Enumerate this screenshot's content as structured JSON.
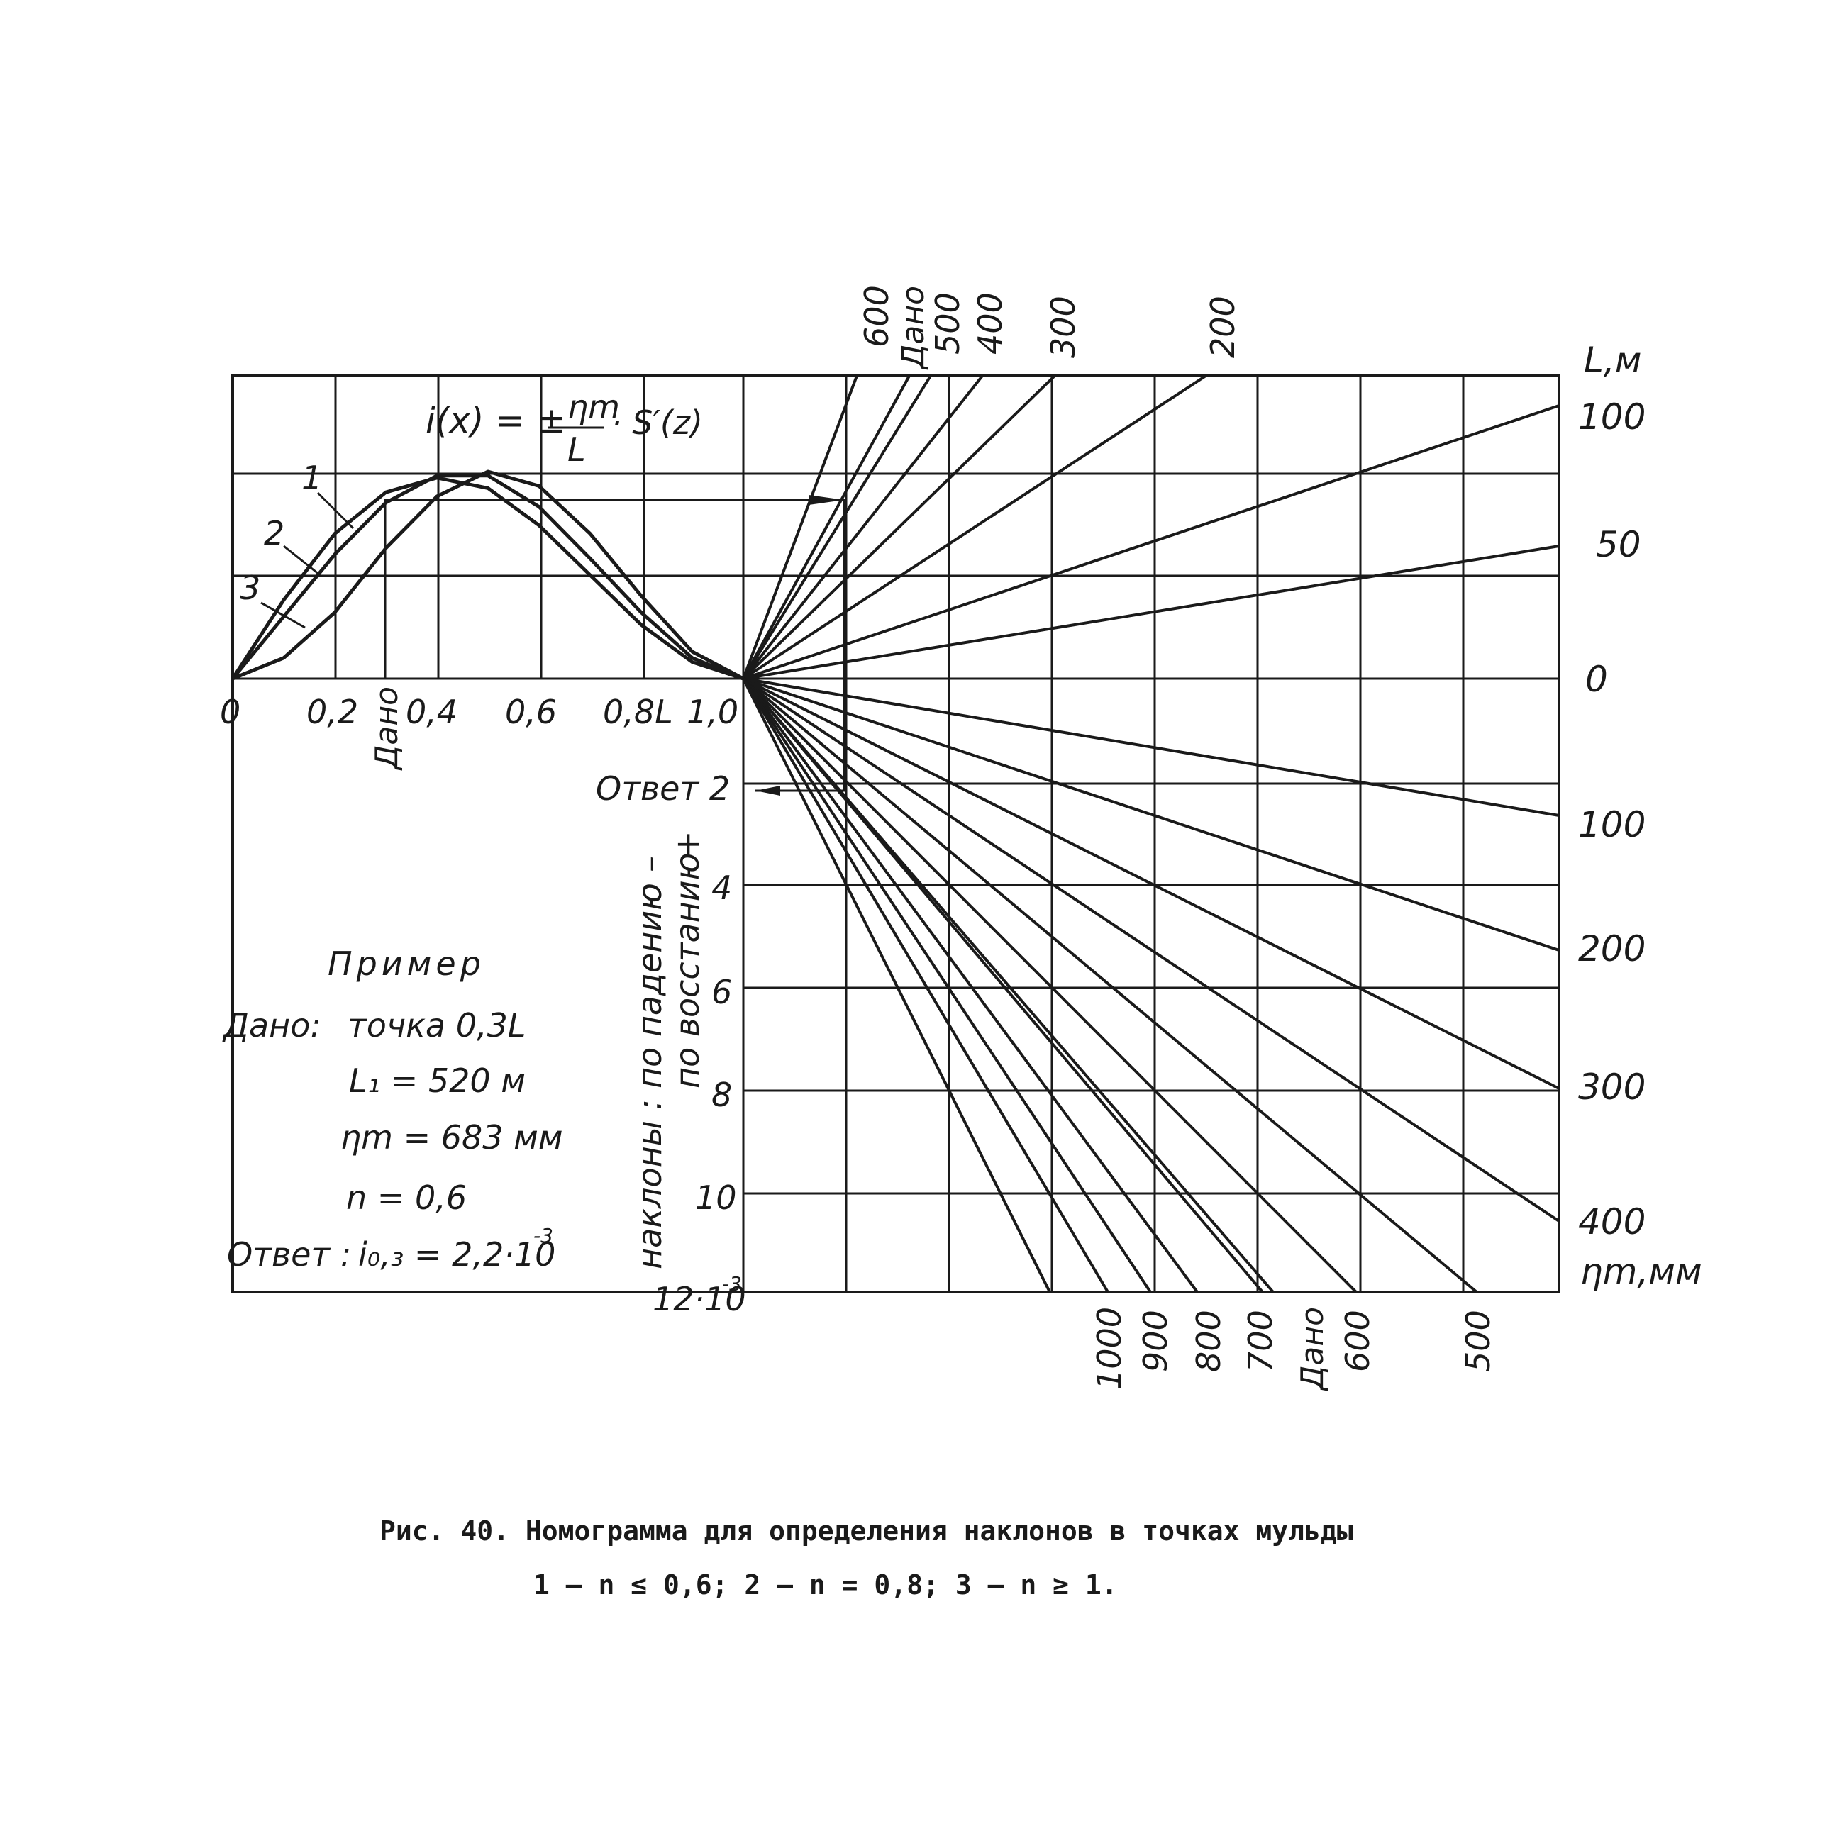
{
  "chart_data": {
    "type": "nomogram",
    "formula": {
      "lhs": "i(x) = ±",
      "numerator": "ηm",
      "denominator": "L",
      "rhs": "· S′(z)"
    },
    "profile_panel": {
      "x_ticks": [
        "0",
        "0,2",
        "Дано",
        "0,4",
        "0,6",
        "0,8L",
        "1,0"
      ],
      "x_given": 0.3,
      "series": [
        {
          "name": "1",
          "x": [
            0,
            0.1,
            0.2,
            0.3,
            0.4,
            0.5,
            0.6,
            0.7,
            0.8,
            0.9,
            1.0
          ],
          "y": [
            0,
            0.38,
            0.7,
            0.9,
            0.97,
            0.92,
            0.74,
            0.5,
            0.26,
            0.08,
            0
          ]
        },
        {
          "name": "2",
          "x": [
            0,
            0.1,
            0.2,
            0.3,
            0.4,
            0.5,
            0.6,
            0.7,
            0.8,
            0.9,
            1.0
          ],
          "y": [
            0,
            0.3,
            0.6,
            0.85,
            0.98,
            0.98,
            0.83,
            0.58,
            0.32,
            0.1,
            0
          ]
        },
        {
          "name": "3",
          "x": [
            0,
            0.1,
            0.2,
            0.3,
            0.4,
            0.5,
            0.6,
            0.7,
            0.8,
            0.9,
            1.0
          ],
          "y": [
            0,
            0.1,
            0.32,
            0.63,
            0.88,
            1.0,
            0.93,
            0.7,
            0.4,
            0.13,
            0
          ]
        }
      ]
    },
    "slope_axis": {
      "ticks": [
        "Ответ 2",
        "4",
        "6",
        "8",
        "10"
      ],
      "bottom_label": "12·10",
      "bottom_exp": "-3",
      "label_line1": "наклоны :",
      "label_line2a": "по падению",
      "label_line2b": "–",
      "label_line3a": "по восстанию",
      "label_line3b": "+"
    },
    "L_axis": {
      "label": "L,м",
      "ticks_upper": [
        "100",
        "50",
        "0"
      ],
      "ticks_lower": [
        "100",
        "200",
        "300",
        "400"
      ]
    },
    "eta_axis": {
      "label": "ηm,мм"
    },
    "top_ray_labels": [
      "600",
      "Дано",
      "500",
      "400",
      "300",
      "200"
    ],
    "bottom_ray_labels": [
      "1000",
      "900",
      "800",
      "700",
      "Дано",
      "600",
      "500"
    ]
  },
  "example": {
    "title": "Пример",
    "given_label": "Дано:",
    "point": "точка   0,3L",
    "L1": "L₁ = 520 м",
    "eta": "ηm = 683 мм",
    "n": "n = 0,6",
    "answer_label": "Ответ :",
    "answer_value": "i₀,₃ = 2,2·10",
    "answer_exp": "-3"
  },
  "caption": {
    "line1": "Рис. 40. Номограмма для определения наклонов в точках мульды",
    "line2": "1 – n ≤ 0,6;   2 – n = 0,8;   3 – n ≥ 1."
  }
}
